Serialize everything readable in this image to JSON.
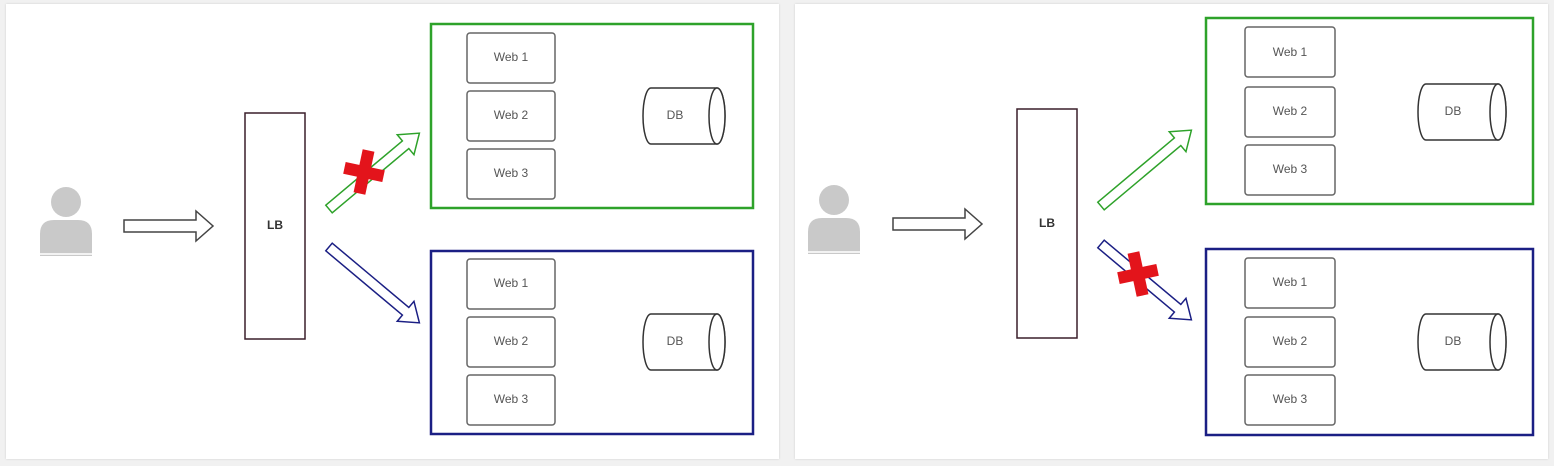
{
  "colors": {
    "green_group": "#2ea22a",
    "blue_group": "#1b1f84",
    "lb_border": "#3a1f2a",
    "fail_marker": "#e3141b",
    "user_icon": "#c9c9c9"
  },
  "panels": [
    {
      "lb_label": "LB",
      "green_group": {
        "web": [
          "Web 1",
          "Web 2",
          "Web 3"
        ],
        "db": "DB"
      },
      "blue_group": {
        "web": [
          "Web 1",
          "Web 2",
          "Web 3"
        ],
        "db": "DB"
      },
      "blocked_route": "green"
    },
    {
      "lb_label": "LB",
      "green_group": {
        "web": [
          "Web 1",
          "Web 2",
          "Web 3"
        ],
        "db": "DB"
      },
      "blue_group": {
        "web": [
          "Web 1",
          "Web 2",
          "Web 3"
        ],
        "db": "DB"
      },
      "blocked_route": "blue"
    }
  ],
  "icons": {
    "user": "user-icon",
    "request_arrow": "arrow-right-icon",
    "blocked": "red-cross-icon"
  }
}
